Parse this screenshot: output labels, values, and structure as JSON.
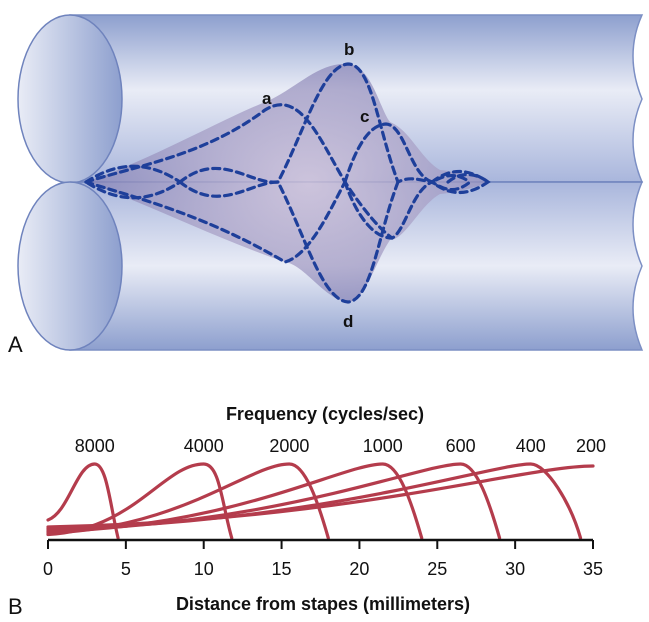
{
  "panel_a": {
    "panel_label": "A",
    "wave_labels": {
      "a": "a",
      "b": "b",
      "c": "c",
      "d": "d"
    },
    "colors": {
      "tube": "#8d9fce",
      "tube_light": "#e9ecf6",
      "wave": "#1e3f9a",
      "envelope": "#7e7db3"
    }
  },
  "panel_b": {
    "panel_label": "B",
    "colors": {
      "curve": "#b43c4c",
      "axis": "#111111"
    }
  },
  "chart_data": {
    "type": "line",
    "title": "Frequency (cycles/sec)",
    "xlabel": "Distance from stapes (millimeters)",
    "ylabel": "",
    "xlim": [
      0,
      35
    ],
    "x_ticks": [
      "0",
      "5",
      "10",
      "15",
      "20",
      "25",
      "30",
      "35"
    ],
    "series": [
      {
        "name": "8000",
        "peak_x": 3,
        "start_x": 0,
        "end_x": 4.5
      },
      {
        "name": "4000",
        "peak_x": 10,
        "start_x": 0,
        "end_x": 11.8
      },
      {
        "name": "2000",
        "peak_x": 15.5,
        "start_x": 0,
        "end_x": 18
      },
      {
        "name": "1000",
        "peak_x": 21.5,
        "start_x": 0,
        "end_x": 24
      },
      {
        "name": "600",
        "peak_x": 26.5,
        "start_x": 0,
        "end_x": 29
      },
      {
        "name": "400",
        "peak_x": 31,
        "start_x": 0,
        "end_x": 34.2
      },
      {
        "name": "200",
        "peak_x": 35,
        "start_x": 0,
        "end_x": 35
      }
    ]
  }
}
